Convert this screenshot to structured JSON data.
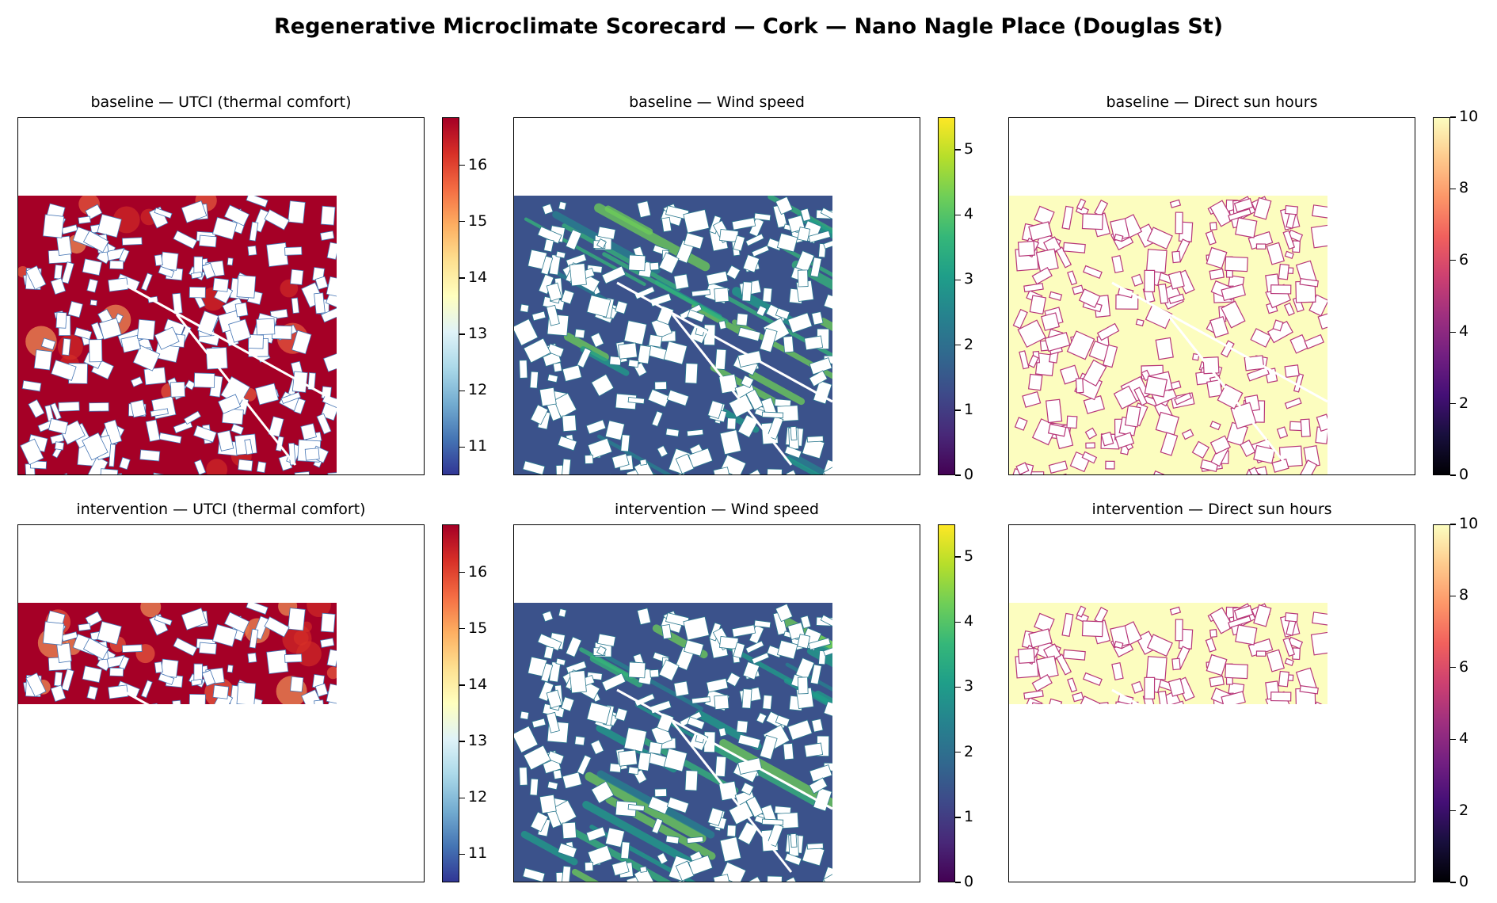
{
  "figure": {
    "title": "Regenerative Microclimate Scorecard — Cork — Nano Nagle Place (Douglas St)"
  },
  "chart_data": [
    {
      "type": "heatmap",
      "title": "baseline — UTCI (thermal comfort)",
      "metric": "UTCI",
      "scenario": "baseline",
      "colormap": "RdYlBu_r",
      "colorbar": {
        "min": 10.5,
        "max": 16.85,
        "ticks": [
          11,
          12,
          13,
          14,
          15,
          16
        ]
      },
      "data_extent": "partial"
    },
    {
      "type": "heatmap",
      "title": "baseline — Wind speed",
      "metric": "Wind speed",
      "scenario": "baseline",
      "colormap": "viridis",
      "colorbar": {
        "min": 0,
        "max": 5.5,
        "ticks": [
          0,
          1,
          2,
          3,
          4,
          5
        ]
      },
      "data_extent": "partial"
    },
    {
      "type": "heatmap",
      "title": "baseline — Direct sun hours",
      "metric": "Direct sun hours",
      "scenario": "baseline",
      "colormap": "magma",
      "colorbar": {
        "min": 0,
        "max": 10,
        "ticks": [
          0,
          2,
          4,
          6,
          8,
          10
        ]
      },
      "data_extent": "partial"
    },
    {
      "type": "heatmap",
      "title": "intervention — UTCI (thermal comfort)",
      "metric": "UTCI",
      "scenario": "intervention",
      "colormap": "RdYlBu_r",
      "colorbar": {
        "min": 10.5,
        "max": 16.85,
        "ticks": [
          11,
          12,
          13,
          14,
          15,
          16
        ]
      },
      "data_extent": "strip"
    },
    {
      "type": "heatmap",
      "title": "intervention — Wind speed",
      "metric": "Wind speed",
      "scenario": "intervention",
      "colormap": "viridis",
      "colorbar": {
        "min": 0,
        "max": 5.5,
        "ticks": [
          0,
          1,
          2,
          3,
          4,
          5
        ]
      },
      "data_extent": "partial"
    },
    {
      "type": "heatmap",
      "title": "intervention — Direct sun hours",
      "metric": "Direct sun hours",
      "scenario": "intervention",
      "colormap": "magma",
      "colorbar": {
        "min": 0,
        "max": 10,
        "ticks": [
          0,
          2,
          4,
          6,
          8,
          10
        ]
      },
      "data_extent": "strip"
    }
  ]
}
